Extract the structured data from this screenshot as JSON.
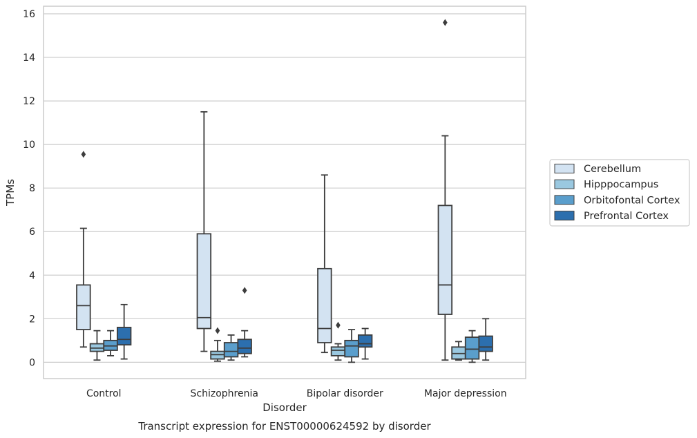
{
  "caption": "Transcript expression for ENST00000624592 by disorder",
  "chart_data": {
    "type": "box",
    "xlabel": "Disorder",
    "ylabel": "TPMs",
    "ylim": [
      -0.75,
      16.35
    ],
    "yticks": [
      0,
      2,
      4,
      6,
      8,
      10,
      12,
      14,
      16
    ],
    "grid": "horizontal",
    "legend_position": "right",
    "categories": [
      "Control",
      "Schizophrenia",
      "Bipolar disorder",
      "Major depression"
    ],
    "series": [
      {
        "name": "Cerebellum",
        "color": "#d3e3f2",
        "boxes": [
          {
            "whisker_low": 0.7,
            "q1": 1.5,
            "median": 2.6,
            "q3": 3.55,
            "whisker_high": 6.15,
            "outliers": [
              9.55
            ]
          },
          {
            "whisker_low": 0.5,
            "q1": 1.55,
            "median": 2.05,
            "q3": 5.9,
            "whisker_high": 11.5,
            "outliers": []
          },
          {
            "whisker_low": 0.45,
            "q1": 0.9,
            "median": 1.55,
            "q3": 4.3,
            "whisker_high": 8.6,
            "outliers": []
          },
          {
            "whisker_low": 0.1,
            "q1": 2.2,
            "median": 3.55,
            "q3": 7.2,
            "whisker_high": 10.4,
            "outliers": [
              15.6
            ]
          }
        ]
      },
      {
        "name": "Hipppocampus",
        "color": "#9ac8e0",
        "boxes": [
          {
            "whisker_low": 0.1,
            "q1": 0.5,
            "median": 0.65,
            "q3": 0.85,
            "whisker_high": 1.45,
            "outliers": []
          },
          {
            "whisker_low": 0.05,
            "q1": 0.15,
            "median": 0.35,
            "q3": 0.5,
            "whisker_high": 1.0,
            "outliers": [
              1.45
            ]
          },
          {
            "whisker_low": 0.1,
            "q1": 0.3,
            "median": 0.55,
            "q3": 0.7,
            "whisker_high": 0.85,
            "outliers": [
              1.7
            ]
          },
          {
            "whisker_low": 0.1,
            "q1": 0.15,
            "median": 0.4,
            "q3": 0.7,
            "whisker_high": 0.95,
            "outliers": []
          }
        ]
      },
      {
        "name": "Orbitofontal Cortex",
        "color": "#5a9ecc",
        "boxes": [
          {
            "whisker_low": 0.3,
            "q1": 0.55,
            "median": 0.75,
            "q3": 1.0,
            "whisker_high": 1.45,
            "outliers": []
          },
          {
            "whisker_low": 0.1,
            "q1": 0.25,
            "median": 0.5,
            "q3": 0.9,
            "whisker_high": 1.25,
            "outliers": []
          },
          {
            "whisker_low": 0.0,
            "q1": 0.25,
            "median": 0.75,
            "q3": 1.0,
            "whisker_high": 1.5,
            "outliers": []
          },
          {
            "whisker_low": 0.0,
            "q1": 0.15,
            "median": 0.6,
            "q3": 1.15,
            "whisker_high": 1.45,
            "outliers": []
          }
        ]
      },
      {
        "name": "Prefrontal Cortex",
        "color": "#2c6fae",
        "boxes": [
          {
            "whisker_low": 0.15,
            "q1": 0.8,
            "median": 1.05,
            "q3": 1.6,
            "whisker_high": 2.65,
            "outliers": []
          },
          {
            "whisker_low": 0.25,
            "q1": 0.4,
            "median": 0.65,
            "q3": 1.05,
            "whisker_high": 1.45,
            "outliers": [
              3.3
            ]
          },
          {
            "whisker_low": 0.15,
            "q1": 0.7,
            "median": 0.85,
            "q3": 1.25,
            "whisker_high": 1.55,
            "outliers": []
          },
          {
            "whisker_low": 0.1,
            "q1": 0.5,
            "median": 0.7,
            "q3": 1.2,
            "whisker_high": 2.0,
            "outliers": []
          }
        ]
      }
    ]
  }
}
